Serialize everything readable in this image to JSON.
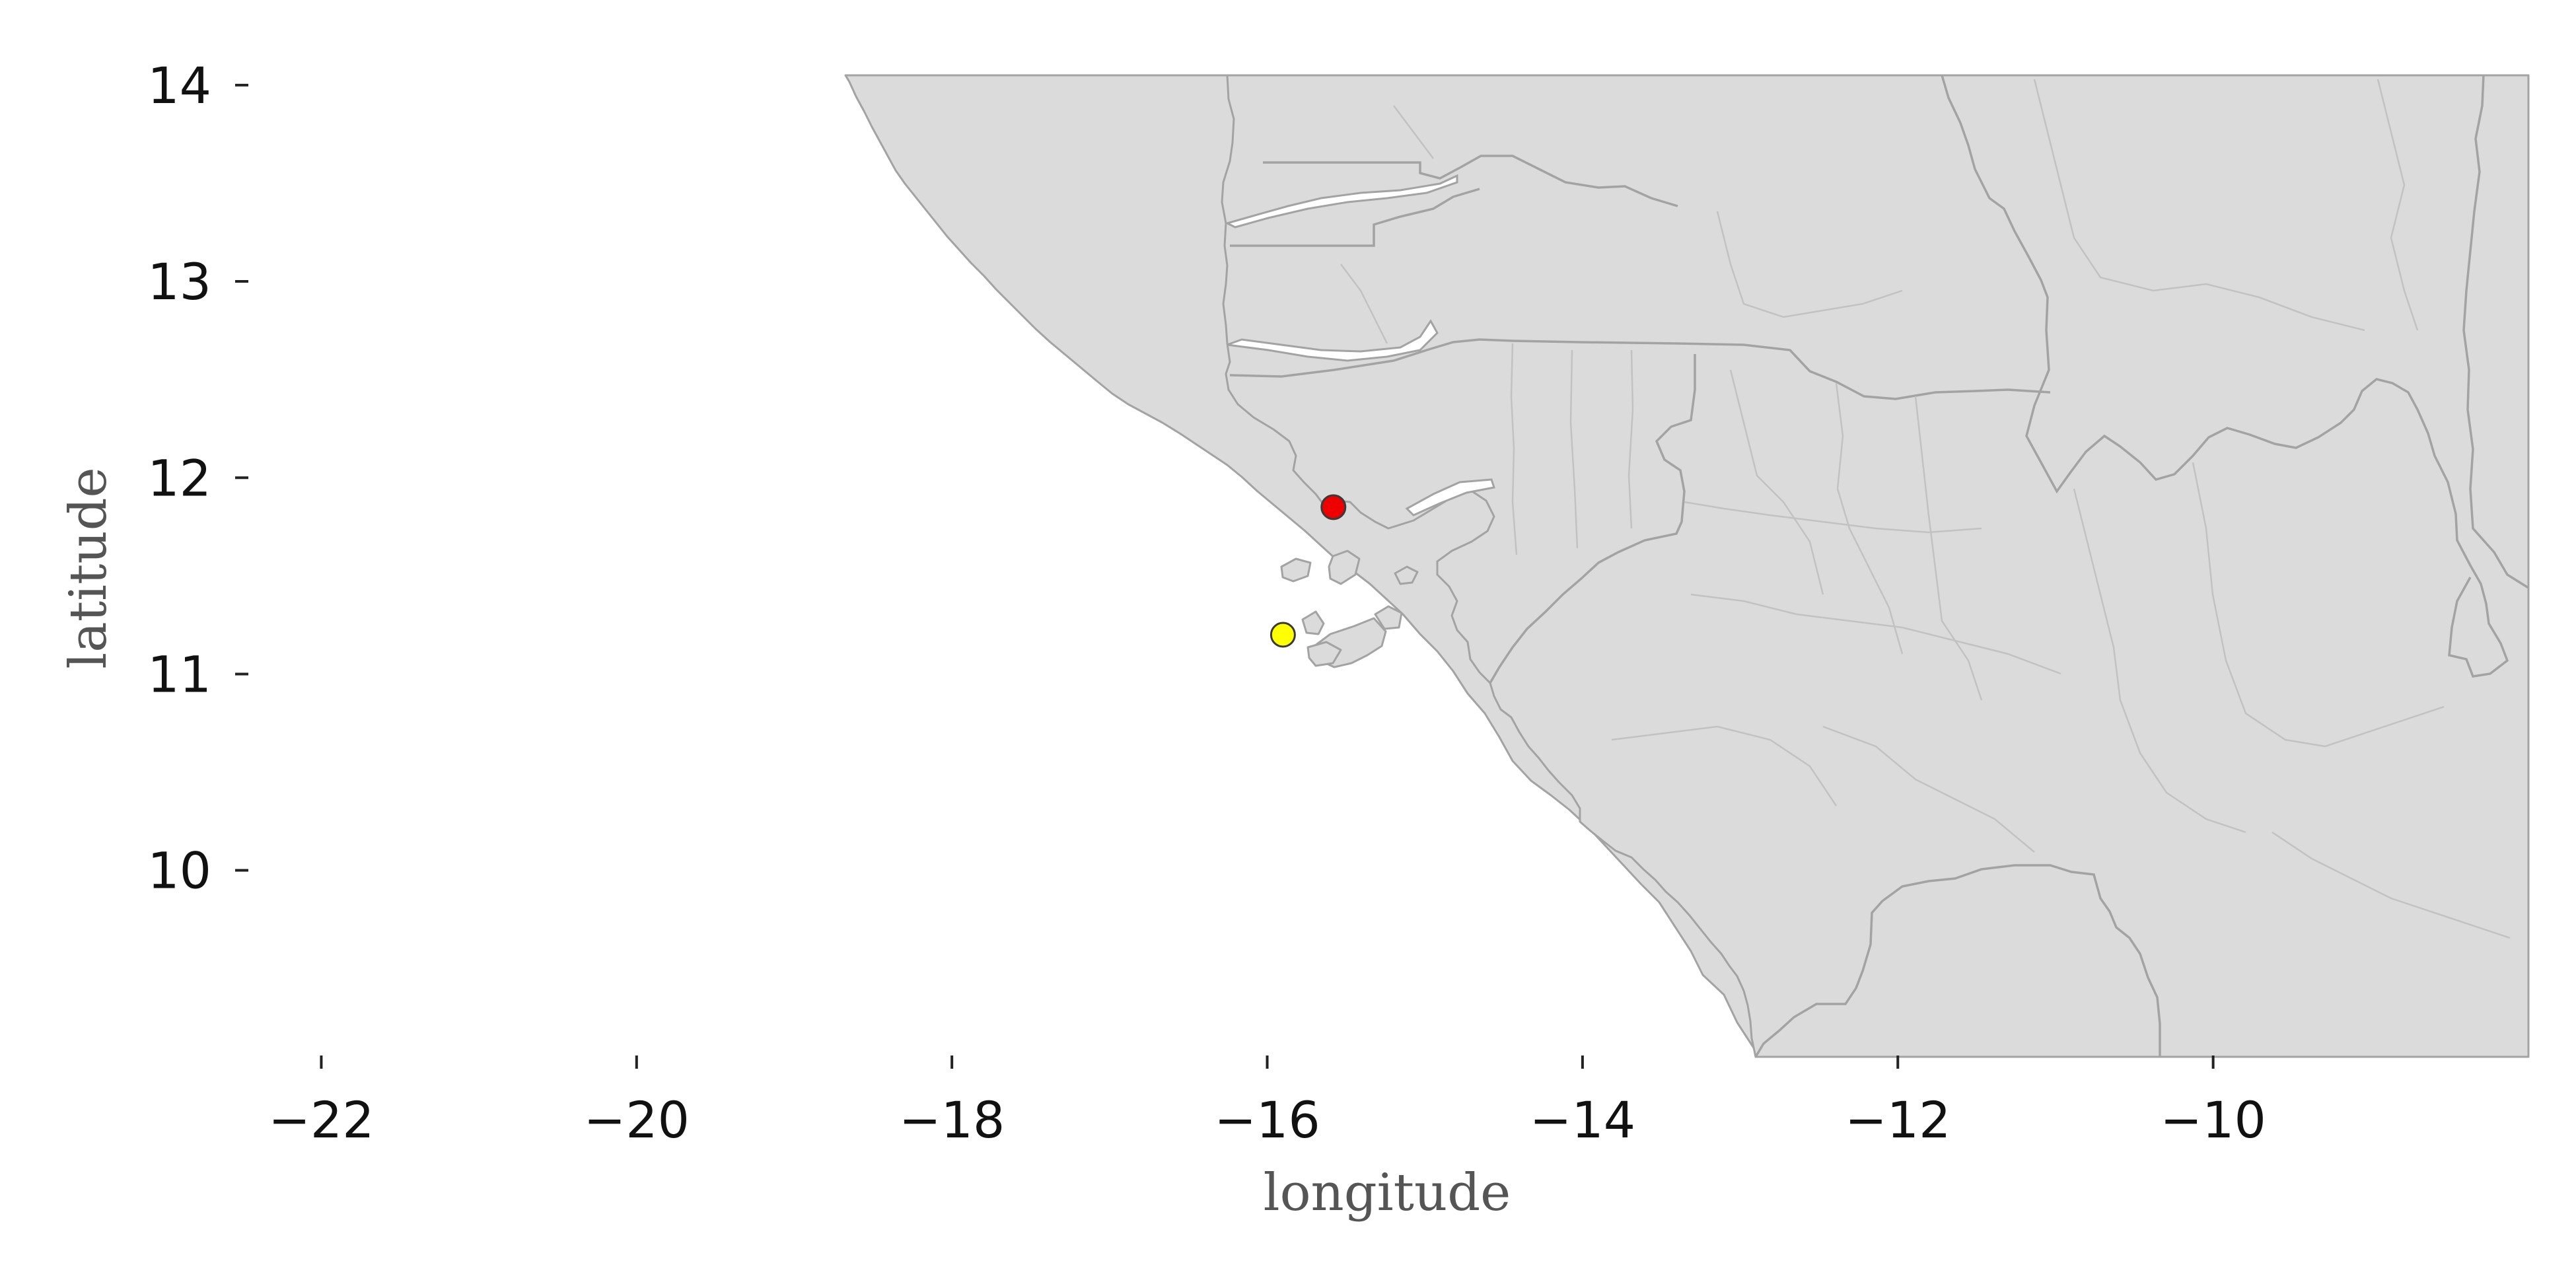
{
  "axes": {
    "xlabel": "longitude",
    "ylabel": "latitude",
    "xlim": [
      -23.2,
      -8.0
    ],
    "ylim": [
      9.05,
      14.05
    ],
    "xticks": [
      -22,
      -20,
      -18,
      -16,
      -14,
      -12,
      -10
    ],
    "yticks": [
      10,
      11,
      12,
      13,
      14
    ],
    "xtick_labels": [
      "−22",
      "−20",
      "−18",
      "−16",
      "−14",
      "−12",
      "−10"
    ],
    "ytick_labels": [
      "10",
      "11",
      "12",
      "13",
      "14"
    ]
  },
  "map": {
    "land_color": "#dbdbdb",
    "border_color": "#a3a3a3",
    "region": "West Africa coast (Guinea-Bissau, Guinea, Senegal, Gambia)"
  },
  "points": [
    {
      "lon": -15.58,
      "lat": 11.85,
      "color": "#ee0000"
    },
    {
      "lon": -15.9,
      "lat": 11.2,
      "color": "#ffff00"
    }
  ]
}
